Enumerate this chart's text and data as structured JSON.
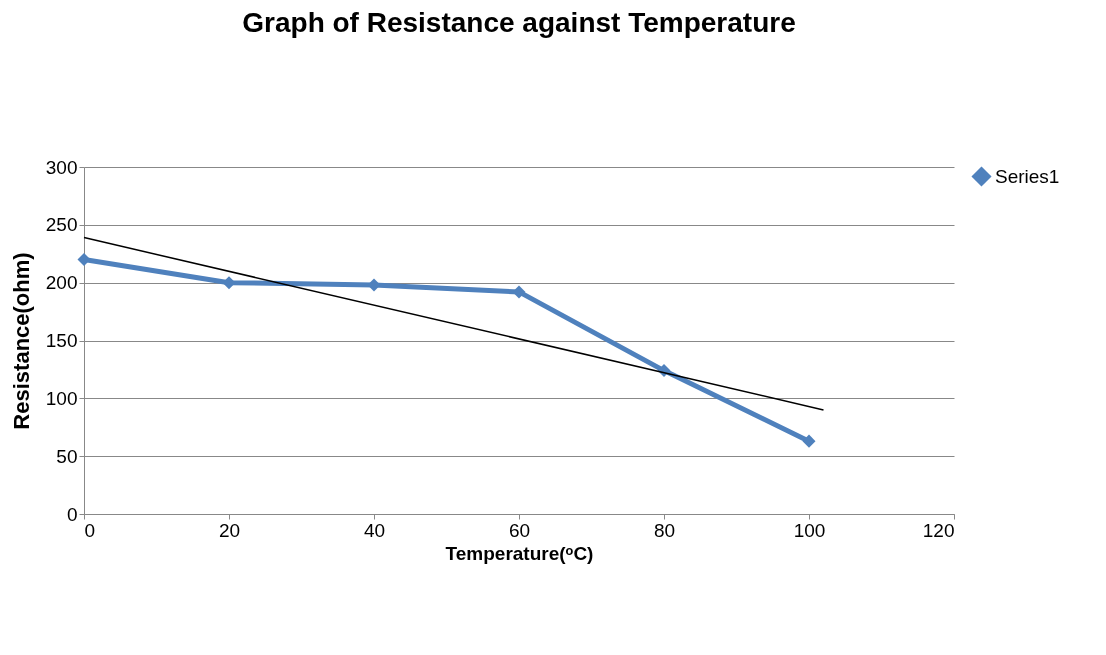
{
  "chart_data": {
    "type": "line",
    "title": "Graph of Resistance against Temperature",
    "xlabel": "Temperature(ᵒC)",
    "ylabel": "Resistance(ohm)",
    "x": [
      0,
      20,
      40,
      60,
      80,
      100
    ],
    "series": [
      {
        "name": "Series1",
        "color": "#4f81bd",
        "values": [
          220,
          200,
          198,
          192,
          124,
          63
        ],
        "marker": "diamond"
      },
      {
        "type": "line",
        "color": "#000000",
        "x": [
          0,
          102
        ],
        "values": [
          239,
          90
        ],
        "marker": "none"
      }
    ],
    "xlim": [
      0,
      120
    ],
    "xticks": [
      0,
      20,
      40,
      60,
      80,
      100,
      120
    ],
    "ylim": [
      0,
      300
    ],
    "yticks": [
      0,
      50,
      100,
      150,
      200,
      250,
      300
    ],
    "grid": "y",
    "legend": "right"
  }
}
